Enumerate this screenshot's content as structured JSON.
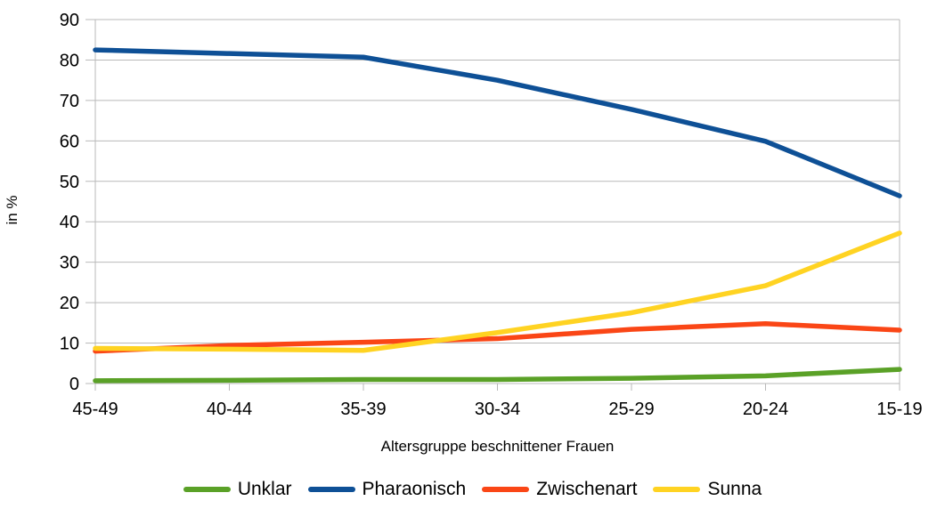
{
  "chart_data": {
    "type": "line",
    "title": "",
    "xlabel": "Altersgruppe beschnittener Frauen",
    "ylabel": "in %",
    "categories": [
      "45-49",
      "40-44",
      "35-39",
      "30-34",
      "25-29",
      "20-24",
      "15-19"
    ],
    "series": [
      {
        "name": "Unklar",
        "color": "#5aa127",
        "values": [
          0.7,
          0.8,
          1.0,
          1.0,
          1.3,
          1.9,
          3.5
        ]
      },
      {
        "name": "Pharaonisch",
        "color": "#0e5096",
        "values": [
          82.5,
          81.6,
          80.7,
          75.0,
          67.8,
          59.9,
          46.4
        ]
      },
      {
        "name": "Zwischenart",
        "color": "#fa4616",
        "values": [
          8.0,
          9.4,
          10.2,
          11.1,
          13.4,
          14.8,
          13.2
        ]
      },
      {
        "name": "Sunna",
        "color": "#ffd322",
        "values": [
          8.7,
          8.5,
          8.2,
          12.6,
          17.5,
          24.2,
          37.2
        ]
      }
    ],
    "ylim": [
      0,
      90
    ],
    "yticks": [
      0,
      10,
      20,
      30,
      40,
      50,
      60,
      70,
      80,
      90
    ],
    "grid": "horizontal",
    "grid_color": "#b9b9b9",
    "axis_color": "#b9b9b9",
    "legend_position": "bottom",
    "line_width": 5.5
  }
}
